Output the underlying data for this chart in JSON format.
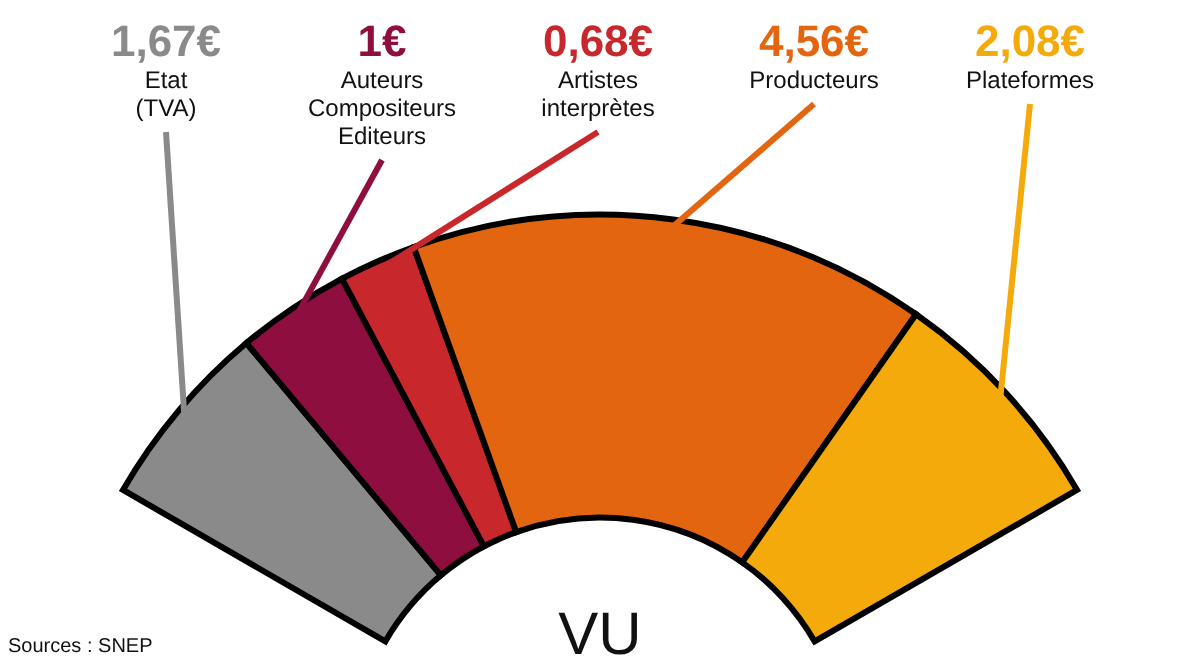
{
  "chart_data": {
    "type": "donut",
    "categories": [
      "Etat (TVA)",
      "Auteurs Compositeurs Editeurs",
      "Artistes interprètes",
      "Producteurs",
      "Plateformes"
    ],
    "values": [
      1.67,
      1,
      0.68,
      4.56,
      2.08
    ],
    "value_labels": [
      "1,67€",
      "1€",
      "0,68€",
      "4,56€",
      "2,08€"
    ],
    "colors": [
      "#8a8a8a",
      "#8e0e3f",
      "#c8282c",
      "#e3650f",
      "#f4aa0b"
    ],
    "annotations": [
      "VU",
      "Sources : SNEP"
    ]
  }
}
